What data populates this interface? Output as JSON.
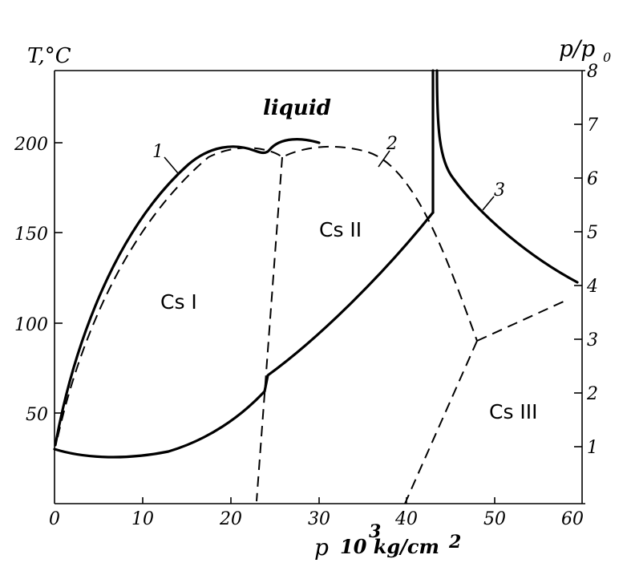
{
  "axes": {
    "left_label": "T,°C",
    "right_label": "p/p",
    "right_label_sub": "0",
    "bottom_label": "p",
    "bottom_unit_exp": "3",
    "bottom_unit": "10 kg/cm",
    "bottom_unit_sq": "2",
    "x_ticks": [
      "0",
      "10",
      "20",
      "30",
      "40",
      "50",
      "60"
    ],
    "y_left_ticks": [
      "50",
      "100",
      "150",
      "200"
    ],
    "y_right_ticks": [
      "1",
      "2",
      "3",
      "4",
      "5",
      "6",
      "7",
      "8"
    ]
  },
  "phases": {
    "liquid": "liquid",
    "cs1": "Cs I",
    "cs2": "Cs II",
    "cs3": "Cs III"
  },
  "curve_labels": {
    "c1": "1",
    "c2": "2",
    "c3": "3"
  }
}
